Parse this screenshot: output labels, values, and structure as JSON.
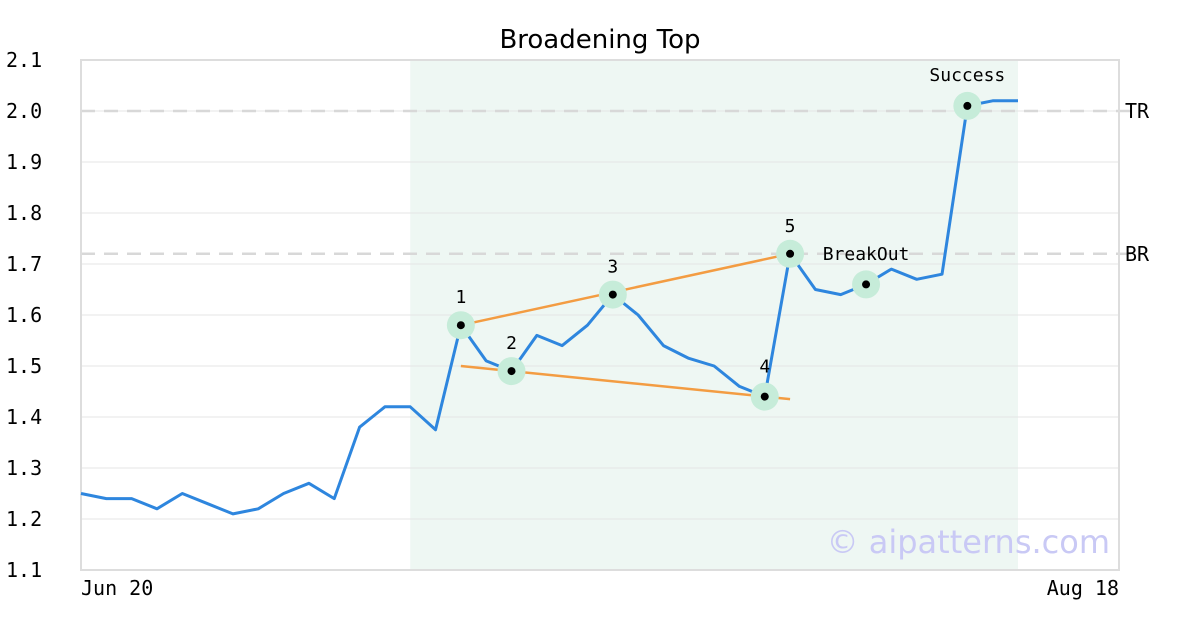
{
  "chart_data": {
    "type": "line",
    "title": "Broadening Top",
    "xlabel": "",
    "ylabel": "",
    "ylim": [
      1.1,
      2.1
    ],
    "y_ticks": [
      1.1,
      1.2,
      1.3,
      1.4,
      1.5,
      1.6,
      1.7,
      1.8,
      1.9,
      2.0,
      2.1
    ],
    "y_tick_labels": [
      "1.1",
      "1.2",
      "1.3",
      "1.4",
      "1.5",
      "1.6",
      "1.7",
      "1.8",
      "1.9",
      "2.0",
      "2.1"
    ],
    "x_tick_labels": [
      "Jun 20",
      "Aug 18"
    ],
    "grid": true,
    "series": [
      {
        "color": "#2e86de",
        "values": [
          1.25,
          1.24,
          1.24,
          1.22,
          1.25,
          1.23,
          1.21,
          1.22,
          1.25,
          1.27,
          1.24,
          1.38,
          1.42,
          1.42,
          1.375,
          1.58,
          1.51,
          1.49,
          1.56,
          1.54,
          1.58,
          1.64,
          1.6,
          1.54,
          1.515,
          1.5,
          1.46,
          1.44,
          1.72,
          1.65,
          1.64,
          1.66,
          1.69,
          1.67,
          1.68,
          2.01,
          2.02,
          2.02
        ]
      }
    ],
    "highlight_range": {
      "start_index": 13,
      "end_index": 37,
      "color": "#eef7f3"
    },
    "reference_lines": [
      {
        "label": "TR",
        "y": 2.0
      },
      {
        "label": "BR",
        "y": 1.72
      }
    ],
    "trend_lines": [
      {
        "color": "#f39c42",
        "from": {
          "index": 15,
          "y": 1.58
        },
        "to": {
          "index": 28,
          "y": 1.72
        }
      },
      {
        "color": "#f39c42",
        "from": {
          "index": 15,
          "y": 1.5
        },
        "to": {
          "index": 28,
          "y": 1.435
        }
      }
    ],
    "annotations": [
      {
        "label": "1",
        "index": 15,
        "y": 1.58
      },
      {
        "label": "2",
        "index": 17,
        "y": 1.49
      },
      {
        "label": "3",
        "index": 21,
        "y": 1.64
      },
      {
        "label": "4",
        "index": 27,
        "y": 1.44
      },
      {
        "label": "5",
        "index": 28,
        "y": 1.72
      },
      {
        "label": "BreakOut",
        "index": 31,
        "y": 1.66
      },
      {
        "label": "Success",
        "index": 35,
        "y": 2.01
      }
    ],
    "marker_colors": {
      "ring": "#c6ecd9",
      "dot": "#000000"
    },
    "watermark": "© aipatterns.com"
  }
}
